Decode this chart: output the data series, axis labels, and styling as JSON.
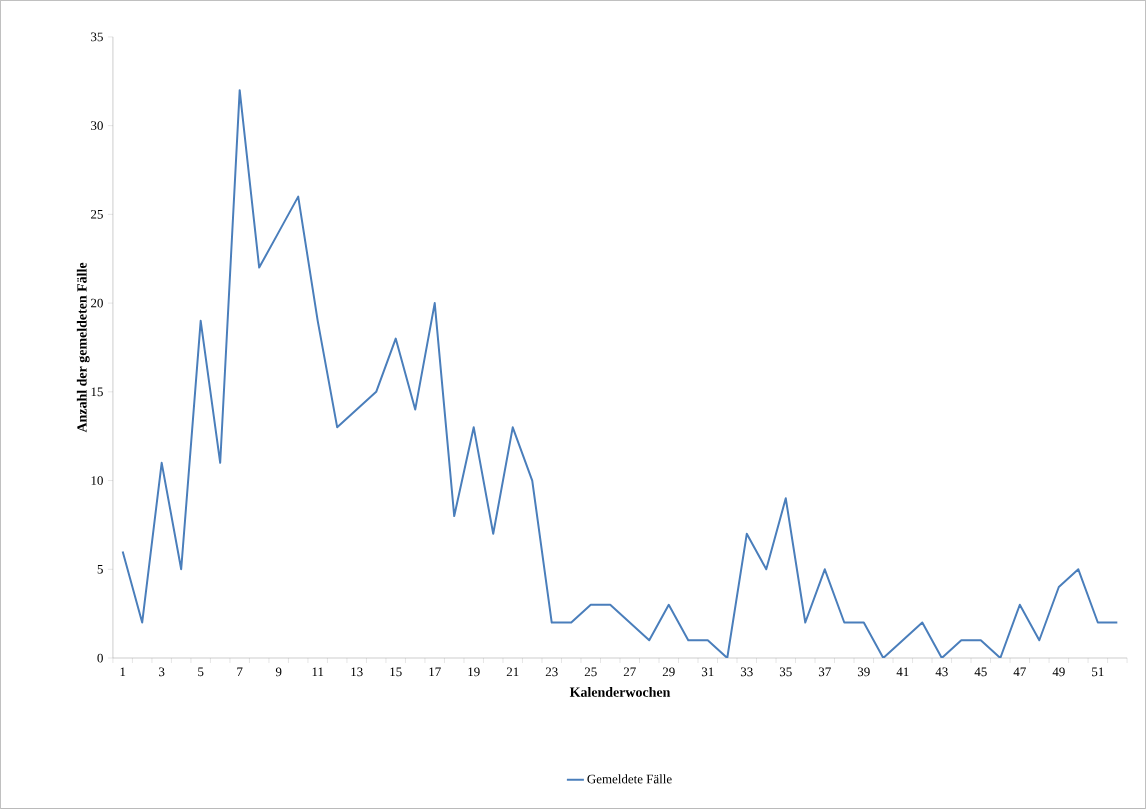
{
  "chart_data": {
    "type": "line",
    "xlabel": "Kalenderwochen",
    "ylabel": "Anzahl der gemeldeten Fälle",
    "categories": [
      "1",
      null,
      "3",
      null,
      "5",
      null,
      "7",
      null,
      "9",
      null,
      "11",
      null,
      "13",
      null,
      "15",
      null,
      "17",
      null,
      "19",
      null,
      "21",
      null,
      "23",
      null,
      "25",
      null,
      "27",
      null,
      "29",
      null,
      "31",
      null,
      "33",
      null,
      "35",
      null,
      "37",
      null,
      "39",
      null,
      "41",
      null,
      "43",
      null,
      "45",
      null,
      "47",
      null,
      "49",
      null,
      "51",
      null
    ],
    "series": [
      {
        "name": "Gemeldete Fälle",
        "color": "#4a7ebb",
        "values": [
          6,
          2,
          11,
          5,
          19,
          11,
          32,
          22,
          24,
          26,
          19,
          13,
          14,
          15,
          18,
          14,
          20,
          8,
          13,
          7,
          13,
          10,
          2,
          2,
          3,
          3,
          2,
          1,
          3,
          1,
          1,
          0,
          7,
          5,
          9,
          2,
          5,
          2,
          2,
          0,
          1,
          2,
          0,
          1,
          1,
          0,
          3,
          1,
          4,
          5,
          2,
          2
        ]
      }
    ],
    "ylim": [
      0,
      35
    ],
    "yticks": [
      0,
      5,
      10,
      15,
      20,
      25,
      30,
      35
    ],
    "legend": "bottom",
    "marker": "none",
    "line_style": "solid"
  }
}
